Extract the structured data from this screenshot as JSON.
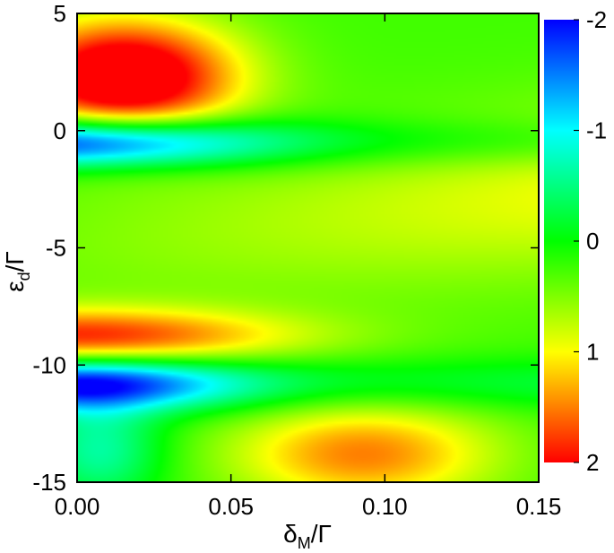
{
  "chart_data": {
    "type": "heatmap",
    "xlabel": {
      "main": "δ",
      "sub": "M",
      "tail": "/Γ"
    },
    "ylabel": {
      "main": "ε",
      "sub": "d",
      "tail": "/Γ"
    },
    "xlim": [
      0.0,
      0.15
    ],
    "ylim": [
      -15,
      5
    ],
    "x_ticks": [
      {
        "value": 0.0,
        "label": "0.00"
      },
      {
        "value": 0.05,
        "label": "0.05"
      },
      {
        "value": 0.1,
        "label": "0.10"
      },
      {
        "value": 0.15,
        "label": "0.15"
      }
    ],
    "y_ticks": [
      {
        "value": 5,
        "label": "5"
      },
      {
        "value": 0,
        "label": "0"
      },
      {
        "value": -5,
        "label": "-5"
      },
      {
        "value": -10,
        "label": "-10"
      },
      {
        "value": -15,
        "label": "-15"
      }
    ],
    "colorbar": {
      "range": [
        -2,
        2
      ],
      "ticks": [
        {
          "value": -2,
          "label": "-2"
        },
        {
          "value": -1,
          "label": "-1"
        },
        {
          "value": 0,
          "label": "0"
        },
        {
          "value": 1,
          "label": "1"
        },
        {
          "value": 2,
          "label": "2"
        }
      ],
      "colormap": [
        {
          "value": -2,
          "color": "#0000ff"
        },
        {
          "value": -1,
          "color": "#00ffff"
        },
        {
          "value": 0,
          "color": "#00ff00"
        },
        {
          "value": 1,
          "color": "#ffff00"
        },
        {
          "value": 2,
          "color": "#ff0000"
        }
      ],
      "orientation": "top is -2, bottom is 2"
    },
    "features": [
      {
        "desc": "red maximum",
        "x": 0.02,
        "y": 2.0,
        "value": 2.0
      },
      {
        "desc": "blue minimum",
        "x": 0.0,
        "y": -0.5,
        "value": -1.9
      },
      {
        "desc": "red maximum",
        "x": 0.0,
        "y": -9.0,
        "value": 1.9
      },
      {
        "desc": "blue minimum",
        "x": 0.0,
        "y": -10.8,
        "value": -2.0
      },
      {
        "desc": "yellow ridge",
        "x": 0.06,
        "y": -4.5,
        "value": 1.0
      },
      {
        "desc": "orange region",
        "x": 0.09,
        "y": -13.5,
        "value": 1.3
      }
    ]
  }
}
